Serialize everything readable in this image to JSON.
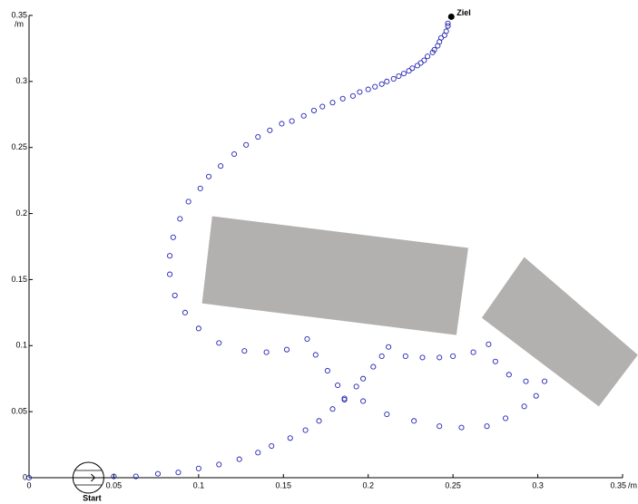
{
  "chart_data": {
    "type": "scatter",
    "xlim": [
      0,
      0.35
    ],
    "ylim": [
      0,
      0.35
    ],
    "xticks": [
      0,
      0.05,
      0.1,
      0.15,
      0.2,
      0.25,
      0.3,
      0.35
    ],
    "yticks": [
      0,
      0.05,
      0.1,
      0.15,
      0.2,
      0.25,
      0.3,
      0.35
    ],
    "xunit": "/m",
    "yunit": "/m",
    "color": "#2424b4",
    "obstacle_color": "#b3b1af",
    "x": [
      0,
      0.05,
      0.063,
      0.076,
      0.088,
      0.1,
      0.112,
      0.124,
      0.135,
      0.143,
      0.154,
      0.163,
      0.171,
      0.179,
      0.186,
      0.193,
      0.197,
      0.203,
      0.208,
      0.212,
      0.222,
      0.232,
      0.242,
      0.25,
      0.262,
      0.271,
      0.275,
      0.283,
      0.293,
      0.304,
      0.299,
      0.292,
      0.281,
      0.27,
      0.255,
      0.242,
      0.227,
      0.211,
      0.164,
      0.169,
      0.176,
      0.182,
      0.186,
      0.197,
      0.152,
      0.14,
      0.127,
      0.112,
      0.1,
      0.092,
      0.086,
      0.083,
      0.083,
      0.085,
      0.089,
      0.094,
      0.101,
      0.106,
      0.113,
      0.121,
      0.128,
      0.135,
      0.142,
      0.149,
      0.155,
      0.162,
      0.168,
      0.173,
      0.179,
      0.185,
      0.191,
      0.195,
      0.2,
      0.204,
      0.208,
      0.211,
      0.215,
      0.218,
      0.221,
      0.224,
      0.226,
      0.229,
      0.231,
      0.233,
      0.235,
      0.238,
      0.239,
      0.241,
      0.242,
      0.243,
      0.245,
      0.246,
      0.247,
      0.247
    ],
    "y": [
      0,
      0.001,
      0.001,
      0.003,
      0.004,
      0.007,
      0.01,
      0.014,
      0.019,
      0.024,
      0.03,
      0.036,
      0.043,
      0.052,
      0.06,
      0.069,
      0.075,
      0.084,
      0.092,
      0.099,
      0.092,
      0.091,
      0.091,
      0.092,
      0.095,
      0.101,
      0.088,
      0.078,
      0.073,
      0.073,
      0.062,
      0.054,
      0.045,
      0.039,
      0.038,
      0.039,
      0.043,
      0.048,
      0.105,
      0.093,
      0.081,
      0.07,
      0.059,
      0.058,
      0.097,
      0.095,
      0.096,
      0.102,
      0.113,
      0.125,
      0.138,
      0.154,
      0.168,
      0.182,
      0.196,
      0.209,
      0.219,
      0.228,
      0.236,
      0.245,
      0.252,
      0.258,
      0.263,
      0.268,
      0.27,
      0.274,
      0.278,
      0.281,
      0.284,
      0.287,
      0.289,
      0.292,
      0.294,
      0.296,
      0.298,
      0.3,
      0.302,
      0.304,
      0.306,
      0.308,
      0.31,
      0.312,
      0.314,
      0.316,
      0.319,
      0.322,
      0.324,
      0.327,
      0.33,
      0.333,
      0.335,
      0.338,
      0.342,
      0.344
    ],
    "obstacles": [
      {
        "x": [
          0.108,
          0.259,
          0.252,
          0.102
        ],
        "y": [
          0.198,
          0.174,
          0.108,
          0.132
        ]
      },
      {
        "x": [
          0.292,
          0.359,
          0.336,
          0.267
        ],
        "y": [
          0.167,
          0.093,
          0.054,
          0.121
        ]
      }
    ],
    "start": {
      "label": "Start",
      "x": 0.035,
      "y": 0
    },
    "goal": {
      "label": "Ziel",
      "x": 0.249,
      "y": 0.349
    }
  }
}
